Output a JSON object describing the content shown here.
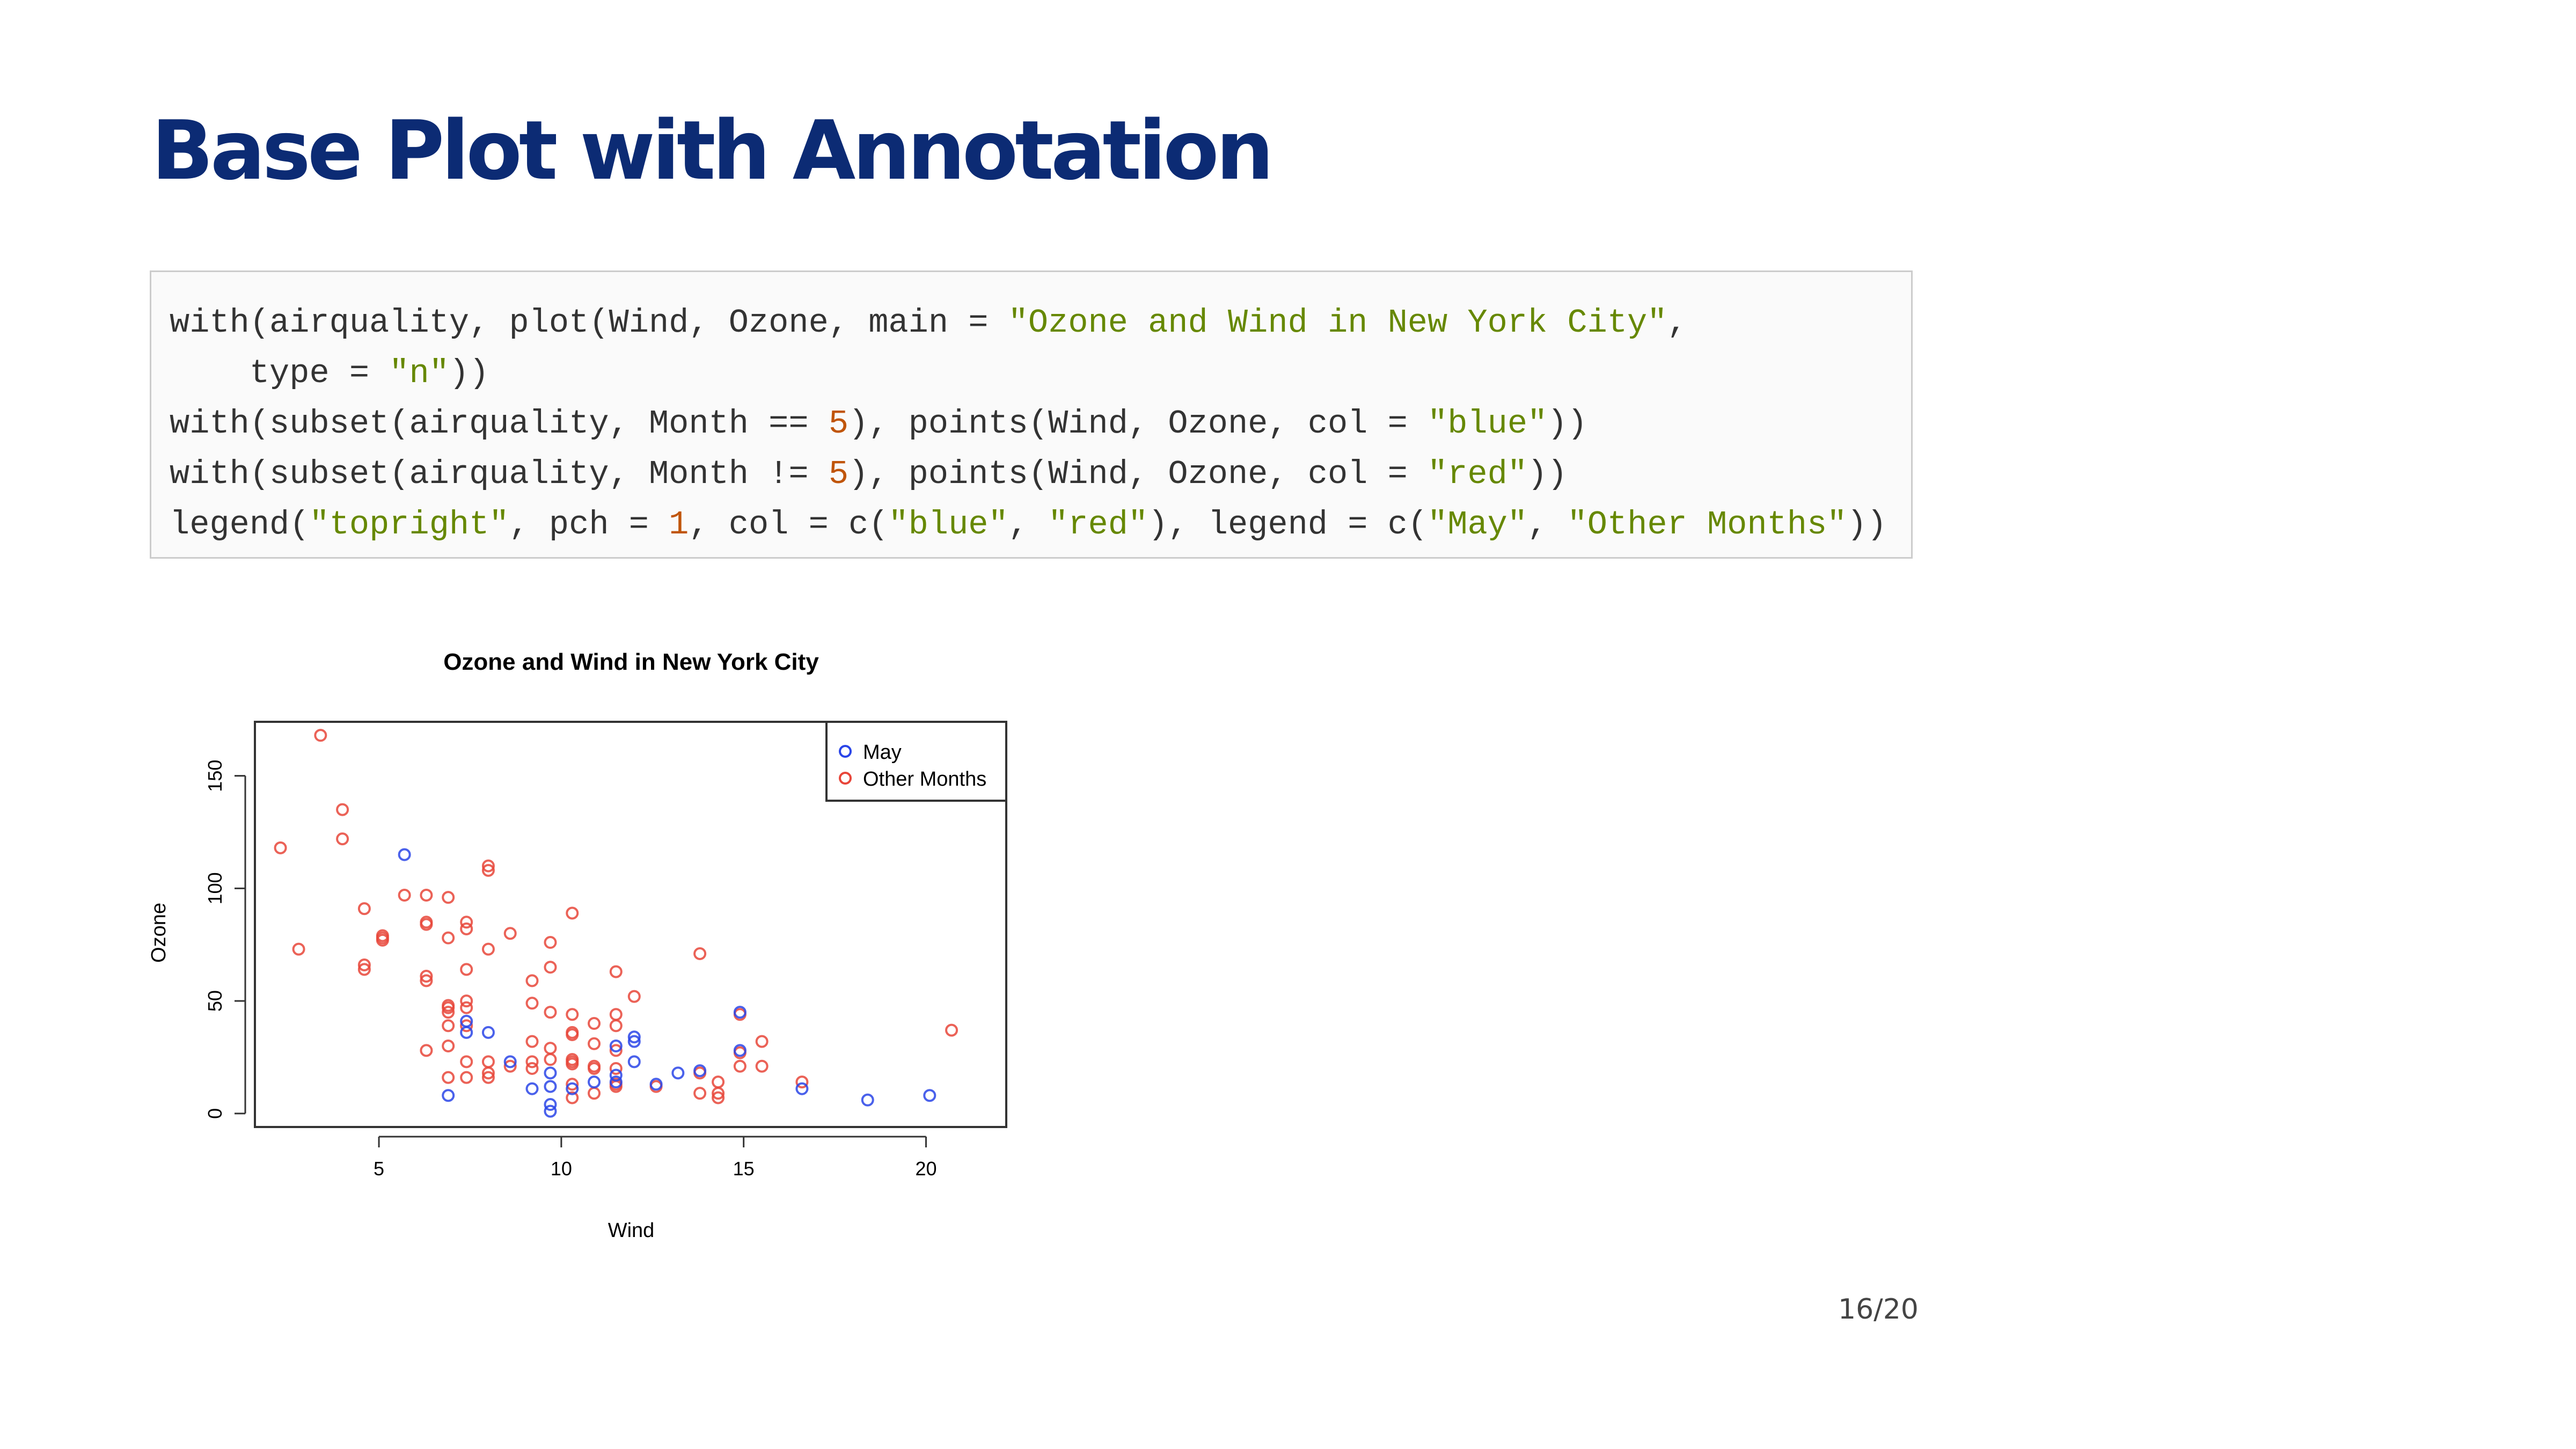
{
  "slide": {
    "title": "Base Plot with Annotation",
    "number": "16/20"
  },
  "code": {
    "lines": [
      [
        {
          "t": "p",
          "v": "with(airquality, plot(Wind, Ozone, main = "
        },
        {
          "t": "s",
          "v": "\"Ozone and Wind in New York City\""
        },
        {
          "t": "p",
          "v": ","
        }
      ],
      [
        {
          "t": "p",
          "v": "    type = "
        },
        {
          "t": "s",
          "v": "\"n\""
        },
        {
          "t": "p",
          "v": "))"
        }
      ],
      [
        {
          "t": "p",
          "v": "with(subset(airquality, Month == "
        },
        {
          "t": "n",
          "v": "5"
        },
        {
          "t": "p",
          "v": "), points(Wind, Ozone, col = "
        },
        {
          "t": "s",
          "v": "\"blue\""
        },
        {
          "t": "p",
          "v": "))"
        }
      ],
      [
        {
          "t": "p",
          "v": "with(subset(airquality, Month != "
        },
        {
          "t": "n",
          "v": "5"
        },
        {
          "t": "p",
          "v": "), points(Wind, Ozone, col = "
        },
        {
          "t": "s",
          "v": "\"red\""
        },
        {
          "t": "p",
          "v": "))"
        }
      ],
      [
        {
          "t": "p",
          "v": "legend("
        },
        {
          "t": "s",
          "v": "\"topright\""
        },
        {
          "t": "p",
          "v": ", pch = "
        },
        {
          "t": "n",
          "v": "1"
        },
        {
          "t": "p",
          "v": ", col = c("
        },
        {
          "t": "s",
          "v": "\"blue\""
        },
        {
          "t": "p",
          "v": ", "
        },
        {
          "t": "s",
          "v": "\"red\""
        },
        {
          "t": "p",
          "v": "), legend = c("
        },
        {
          "t": "s",
          "v": "\"May\""
        },
        {
          "t": "p",
          "v": ", "
        },
        {
          "t": "s",
          "v": "\"Other Months\""
        },
        {
          "t": "p",
          "v": "))"
        }
      ]
    ]
  },
  "chart_data": {
    "type": "scatter",
    "title": "Ozone and Wind in New York City",
    "xlabel": "Wind",
    "ylabel": "Ozone",
    "xlim": [
      1.6,
      22.2
    ],
    "ylim": [
      -6,
      174
    ],
    "xticks": [
      5,
      10,
      15,
      20
    ],
    "yticks": [
      0,
      50,
      100,
      150
    ],
    "grid": false,
    "legend": {
      "position": "top-right",
      "entries": [
        "May",
        "Other Months"
      ]
    },
    "colors": {
      "May": "#2a45e8",
      "Other Months": "#e8463a"
    },
    "series": [
      {
        "name": "May",
        "points": [
          [
            5.7,
            115
          ],
          [
            6.9,
            8
          ],
          [
            7.4,
            41
          ],
          [
            7.4,
            36
          ],
          [
            8.0,
            36
          ],
          [
            8.6,
            23
          ],
          [
            9.2,
            11
          ],
          [
            9.7,
            18
          ],
          [
            9.7,
            12
          ],
          [
            9.7,
            4
          ],
          [
            9.7,
            1
          ],
          [
            10.3,
            11
          ],
          [
            10.9,
            14
          ],
          [
            11.5,
            30
          ],
          [
            11.5,
            17
          ],
          [
            11.5,
            14
          ],
          [
            12.0,
            34
          ],
          [
            12.0,
            32
          ],
          [
            12.0,
            23
          ],
          [
            12.6,
            13
          ],
          [
            13.2,
            18
          ],
          [
            13.8,
            19
          ],
          [
            14.9,
            45
          ],
          [
            14.9,
            28
          ],
          [
            16.6,
            11
          ],
          [
            18.4,
            6
          ],
          [
            20.1,
            8
          ]
        ]
      },
      {
        "name": "Other Months",
        "points": [
          [
            2.3,
            118
          ],
          [
            2.8,
            73
          ],
          [
            3.4,
            168
          ],
          [
            4.0,
            135
          ],
          [
            4.0,
            122
          ],
          [
            4.6,
            91
          ],
          [
            4.6,
            66
          ],
          [
            4.6,
            64
          ],
          [
            5.1,
            79
          ],
          [
            5.1,
            78
          ],
          [
            5.1,
            77
          ],
          [
            5.7,
            97
          ],
          [
            6.3,
            97
          ],
          [
            6.3,
            85
          ],
          [
            6.3,
            84
          ],
          [
            6.3,
            61
          ],
          [
            6.3,
            59
          ],
          [
            6.3,
            28
          ],
          [
            6.9,
            96
          ],
          [
            6.9,
            78
          ],
          [
            6.9,
            48
          ],
          [
            6.9,
            47
          ],
          [
            6.9,
            45
          ],
          [
            6.9,
            39
          ],
          [
            6.9,
            30
          ],
          [
            6.9,
            16
          ],
          [
            7.4,
            85
          ],
          [
            7.4,
            82
          ],
          [
            7.4,
            64
          ],
          [
            7.4,
            50
          ],
          [
            7.4,
            47
          ],
          [
            7.4,
            39
          ],
          [
            7.4,
            23
          ],
          [
            7.4,
            16
          ],
          [
            8.0,
            110
          ],
          [
            8.0,
            108
          ],
          [
            8.0,
            73
          ],
          [
            8.0,
            23
          ],
          [
            8.0,
            18
          ],
          [
            8.0,
            16
          ],
          [
            8.6,
            80
          ],
          [
            8.6,
            21
          ],
          [
            9.2,
            59
          ],
          [
            9.2,
            49
          ],
          [
            9.2,
            32
          ],
          [
            9.2,
            23
          ],
          [
            9.2,
            20
          ],
          [
            9.7,
            76
          ],
          [
            9.7,
            65
          ],
          [
            9.7,
            45
          ],
          [
            9.7,
            29
          ],
          [
            9.7,
            24
          ],
          [
            10.3,
            89
          ],
          [
            10.3,
            44
          ],
          [
            10.3,
            36
          ],
          [
            10.3,
            35
          ],
          [
            10.3,
            24
          ],
          [
            10.3,
            23
          ],
          [
            10.3,
            22
          ],
          [
            10.3,
            13
          ],
          [
            10.3,
            7
          ],
          [
            10.9,
            40
          ],
          [
            10.9,
            31
          ],
          [
            10.9,
            21
          ],
          [
            10.9,
            20
          ],
          [
            10.9,
            9
          ],
          [
            11.5,
            63
          ],
          [
            11.5,
            44
          ],
          [
            11.5,
            39
          ],
          [
            11.5,
            28
          ],
          [
            11.5,
            20
          ],
          [
            11.5,
            13
          ],
          [
            11.5,
            12
          ],
          [
            12.0,
            52
          ],
          [
            12.6,
            12
          ],
          [
            13.8,
            71
          ],
          [
            13.8,
            18
          ],
          [
            13.8,
            9
          ],
          [
            14.3,
            14
          ],
          [
            14.3,
            9
          ],
          [
            14.3,
            7
          ],
          [
            14.9,
            44
          ],
          [
            14.9,
            27
          ],
          [
            14.9,
            21
          ],
          [
            15.5,
            32
          ],
          [
            15.5,
            21
          ],
          [
            16.6,
            14
          ],
          [
            20.7,
            37
          ]
        ]
      }
    ]
  }
}
